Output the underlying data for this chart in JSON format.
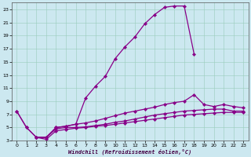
{
  "xlabel": "Windchill (Refroidissement éolien,°C)",
  "bg_color": "#cce8f0",
  "line_color": "#880088",
  "xlim": [
    -0.5,
    23.5
  ],
  "ylim": [
    3,
    24
  ],
  "xticks": [
    0,
    1,
    2,
    3,
    4,
    5,
    6,
    7,
    8,
    9,
    10,
    11,
    12,
    13,
    14,
    15,
    16,
    17,
    18,
    19,
    20,
    21,
    22,
    23
  ],
  "yticks": [
    3,
    5,
    7,
    9,
    11,
    13,
    15,
    17,
    19,
    21,
    23
  ],
  "curve1_x": [
    0,
    1,
    2,
    3,
    4,
    5,
    6,
    7,
    8,
    9,
    10,
    11,
    12,
    13,
    14,
    15,
    16,
    17,
    18
  ],
  "curve1_y": [
    7.5,
    5.0,
    3.5,
    3.5,
    5.0,
    5.2,
    5.5,
    9.5,
    11.3,
    12.8,
    15.5,
    17.3,
    18.8,
    20.8,
    22.2,
    23.3,
    23.5,
    23.5,
    16.2
  ],
  "curve2_x": [
    0,
    1,
    2,
    3,
    4,
    5,
    6,
    7,
    8,
    9,
    10,
    11,
    12,
    13,
    14,
    15,
    16,
    17,
    18,
    19,
    20,
    21,
    22,
    23
  ],
  "curve2_y": [
    7.5,
    5.0,
    3.5,
    3.5,
    5.0,
    5.2,
    5.5,
    5.7,
    6.0,
    6.4,
    6.8,
    7.2,
    7.5,
    7.8,
    8.1,
    8.5,
    8.8,
    9.0,
    10.0,
    8.5,
    8.2,
    8.5,
    8.2,
    8.0
  ],
  "curve3_x": [
    2,
    3,
    4,
    5,
    6,
    7,
    8,
    9,
    10,
    11,
    12,
    13,
    14,
    15,
    16,
    17,
    18,
    19,
    20,
    21,
    22,
    23
  ],
  "curve3_y": [
    3.5,
    3.5,
    4.8,
    5.0,
    5.0,
    5.1,
    5.3,
    5.5,
    5.8,
    6.0,
    6.3,
    6.6,
    6.9,
    7.1,
    7.3,
    7.5,
    7.6,
    7.7,
    7.8,
    7.8,
    7.5,
    7.5
  ],
  "curve4_x": [
    2,
    3,
    4,
    5,
    6,
    7,
    8,
    9,
    10,
    11,
    12,
    13,
    14,
    15,
    16,
    17,
    18,
    19,
    20,
    21,
    22,
    23
  ],
  "curve4_y": [
    3.5,
    3.2,
    4.5,
    4.7,
    4.9,
    5.0,
    5.2,
    5.3,
    5.5,
    5.7,
    5.9,
    6.1,
    6.3,
    6.5,
    6.7,
    6.9,
    7.0,
    7.1,
    7.2,
    7.3,
    7.3,
    7.3
  ]
}
